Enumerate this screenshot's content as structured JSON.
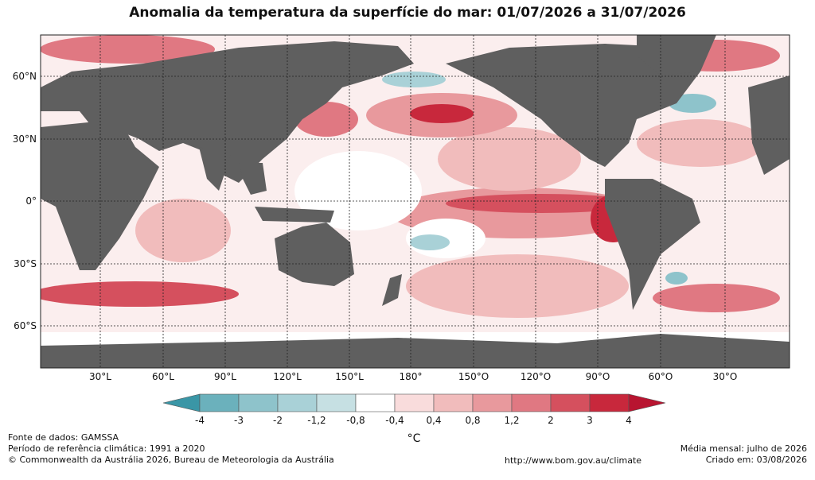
{
  "title": "Anomalia da temperatura da superfície do mar: 01/07/2026 a 31/07/2026",
  "map": {
    "colors": {
      "land": "#5f5f5f",
      "ice": "#ffffff",
      "grid": "#222222"
    },
    "lat_labels": [
      "60°N",
      "30°N",
      "0°",
      "30°S",
      "60°S"
    ],
    "lon_labels": [
      "30°L",
      "60°L",
      "90°L",
      "120°L",
      "150°L",
      "180°",
      "150°O",
      "120°O",
      "90°O",
      "60°O",
      "30°O"
    ]
  },
  "colorbar": {
    "labels": [
      "-4",
      "-3",
      "-2",
      "-1,2",
      "-0,8",
      "-0,4",
      "0,4",
      "0,8",
      "1,2",
      "2",
      "3",
      "4"
    ],
    "colors": [
      "#3a96a6",
      "#6bb1bc",
      "#8ec3cb",
      "#a9d1d7",
      "#c6e0e3",
      "#ffffff",
      "#f9dcdc",
      "#f1bcbc",
      "#e8999d",
      "#e07882",
      "#d5505e",
      "#c8283c",
      "#b81430"
    ],
    "unit": "°C"
  },
  "footer": {
    "source": "Fonte de dados: GAMSSA",
    "reference": "Período de referência climática: 1991 a 2020",
    "copyright": "© Commonwealth da Austrália 2026, Bureau de Meteorologia da Austrália",
    "url": "http://www.bom.gov.au/climate",
    "monthly": "Média mensal: julho de 2026",
    "created": "Criado em: 03/08/2026"
  }
}
